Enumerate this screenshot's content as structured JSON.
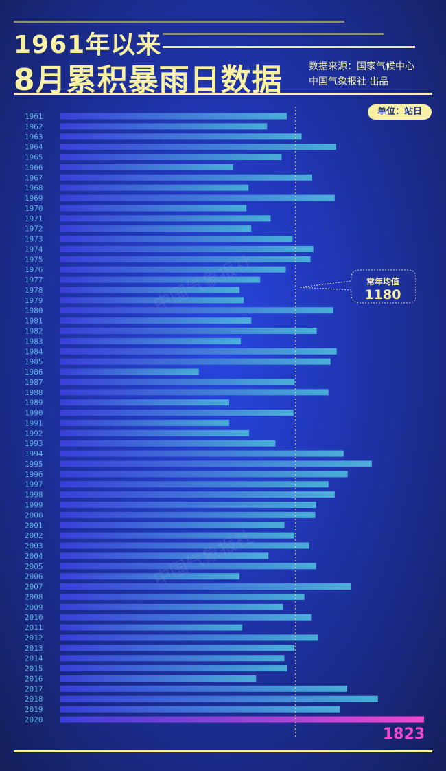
{
  "header": {
    "title_line1": "1961年以来",
    "title_line2": "8月累积暴雨日数据",
    "source": "数据来源：国家气候中心",
    "publisher": "中国气象报社 出品",
    "unit": "单位：站日"
  },
  "watermark": "中国气象报社",
  "colors": {
    "title": "#f7f1a1",
    "bar_start": "#3a3fd8",
    "bar_end": "#4aaed8",
    "highlight_start": "#3a3fd8",
    "highlight_end": "#f048d0",
    "year_label": "#5ab4e4"
  },
  "chart_data": {
    "type": "bar",
    "orientation": "horizontal",
    "title": "1961年以来8月累积暴雨日数据",
    "unit": "站日",
    "categories": [
      "1961",
      "1962",
      "1963",
      "1964",
      "1965",
      "1966",
      "1967",
      "1968",
      "1969",
      "1970",
      "1971",
      "1972",
      "1973",
      "1974",
      "1975",
      "1976",
      "1977",
      "1978",
      "1979",
      "1980",
      "1981",
      "1982",
      "1983",
      "1984",
      "1985",
      "1986",
      "1987",
      "1988",
      "1989",
      "1990",
      "1991",
      "1992",
      "1993",
      "1994",
      "1995",
      "1996",
      "1997",
      "1998",
      "1999",
      "2000",
      "2001",
      "2002",
      "2003",
      "2004",
      "2005",
      "2006",
      "2007",
      "2008",
      "2009",
      "2010",
      "2011",
      "2012",
      "2013",
      "2014",
      "2015",
      "2016",
      "2017",
      "2018",
      "2019",
      "2020"
    ],
    "values": [
      1136,
      1036,
      1209,
      1382,
      1109,
      867,
      1261,
      943,
      1375,
      933,
      1054,
      957,
      1164,
      1268,
      1254,
      1130,
      1002,
      898,
      919,
      1368,
      957,
      1285,
      905,
      1385,
      1354,
      694,
      1174,
      1344,
      846,
      1168,
      846,
      946,
      1078,
      1420,
      1561,
      1440,
      1344,
      1375,
      1282,
      1278,
      1123,
      1174,
      1247,
      1043,
      1282,
      898,
      1458,
      1223,
      1116,
      1257,
      912,
      1292,
      1174,
      1123,
      1136,
      981,
      1437,
      1592,
      1402,
      1823
    ],
    "reference_line": {
      "label": "常年均值",
      "value": 1180
    },
    "highlight": {
      "category": "2020",
      "label": "1823"
    },
    "xlim": [
      0,
      1830
    ]
  }
}
